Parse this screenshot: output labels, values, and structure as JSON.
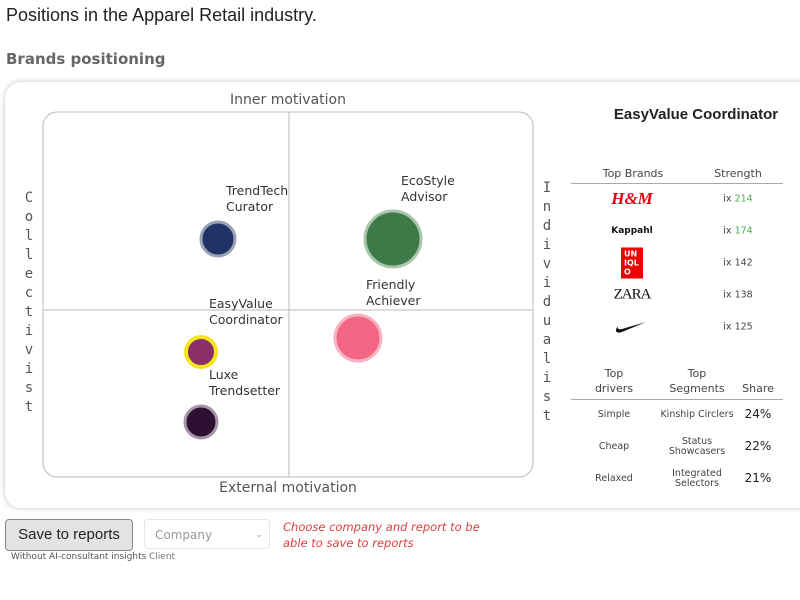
{
  "header": {
    "title": "Positions in the Apparel Retail industry.",
    "section": "Brands positioning"
  },
  "map": {
    "top": "Inner motivation",
    "bottom": "External motivation",
    "left": "Collectivist",
    "right": "Individualist",
    "bubbles": [
      {
        "label": [
          "TrendTech",
          "Curator"
        ]
      },
      {
        "label": [
          "EcoStyle",
          "Advisor"
        ]
      },
      {
        "label": [
          "Friendly",
          "Achiever"
        ]
      },
      {
        "label": [
          "EasyValue",
          "Coordinator"
        ]
      },
      {
        "label": [
          "Luxe",
          "Trendsetter"
        ]
      }
    ]
  },
  "panel": {
    "title": "EasyValue Coordinator",
    "brands": {
      "headers": [
        "Top Brands",
        "Strength"
      ],
      "prefix": "ix",
      "rows": [
        {
          "brand": "H&M",
          "value": 214,
          "highlight": true
        },
        {
          "brand": "Kappahl",
          "value": 174,
          "highlight": true
        },
        {
          "brand": "UNIQLO",
          "value": 142,
          "highlight": false
        },
        {
          "brand": "ZARA",
          "value": 138,
          "highlight": false
        },
        {
          "value": 125,
          "highlight": false
        }
      ]
    },
    "segments": {
      "headers": [
        [
          "Top",
          "drivers"
        ],
        [
          "Top",
          "Segments"
        ],
        "Share"
      ],
      "rows": [
        {
          "driver": "Simple",
          "segment": [
            "Kinship Circlers"
          ],
          "share": "24%"
        },
        {
          "driver": "Cheap",
          "segment": [
            "Status",
            "Showcasers"
          ],
          "share": "22%"
        },
        {
          "driver": "Relaxed",
          "segment": [
            "Integrated",
            "Selectors"
          ],
          "share": "21%"
        }
      ]
    }
  },
  "footer": {
    "button": "Save to reports",
    "button_note": "Without AI-consultant insights",
    "select": "Company",
    "select_note": "Client",
    "warning": [
      "Choose company and report to be",
      "able to save to reports"
    ]
  }
}
